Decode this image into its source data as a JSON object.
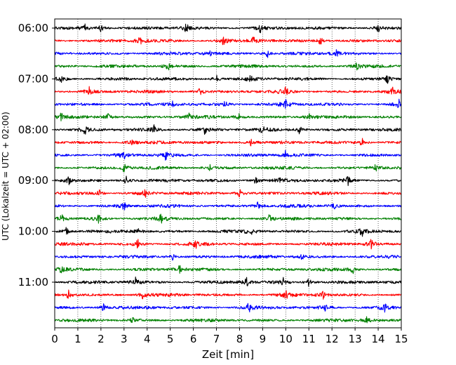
{
  "chart_data": {
    "type": "line",
    "title": "",
    "xlabel": "Zeit  [min]",
    "ylabel": "UTC (Lokalzeit = UTC + 02:00)",
    "xlim": [
      0,
      15
    ],
    "x_ticks": [
      "0",
      "1",
      "2",
      "3",
      "4",
      "5",
      "6",
      "7",
      "8",
      "9",
      "10",
      "11",
      "12",
      "13",
      "14",
      "15"
    ],
    "y_ticks": [
      {
        "label": "06:00",
        "trace": 0
      },
      {
        "label": "07:00",
        "trace": 4
      },
      {
        "label": "08:00",
        "trace": 8
      },
      {
        "label": "09:00",
        "trace": 12
      },
      {
        "label": "10:00",
        "trace": 16
      },
      {
        "label": "11:00",
        "trace": 20
      }
    ],
    "grid": "vertical-dotted",
    "trace_interval_min": 15,
    "trace_colors": [
      "#000000",
      "#ff0000",
      "#0000ff",
      "#008000"
    ],
    "traces": [
      {
        "start": "06:00",
        "events": [
          1.3,
          2.0,
          5.7,
          8.9,
          14.0
        ]
      },
      {
        "start": "06:15",
        "events": [
          3.7,
          7.3,
          8.6,
          11.5
        ]
      },
      {
        "start": "06:30",
        "events": [
          6.7,
          9.2,
          12.2
        ]
      },
      {
        "start": "06:45",
        "events": [
          4.9,
          13.1
        ]
      },
      {
        "start": "07:00",
        "events": [
          0.3,
          7.0,
          8.5,
          14.4
        ]
      },
      {
        "start": "07:15",
        "events": [
          1.5,
          6.3,
          10.0,
          14.6
        ]
      },
      {
        "start": "07:30",
        "events": [
          5.1,
          7.4,
          10.0,
          14.9
        ]
      },
      {
        "start": "07:45",
        "events": [
          0.3,
          2.3,
          5.8,
          8.0,
          11.0
        ]
      },
      {
        "start": "08:00",
        "events": [
          1.3,
          4.3,
          6.5,
          9.0,
          10.6
        ]
      },
      {
        "start": "08:15",
        "events": [
          3.3,
          8.5,
          13.3
        ]
      },
      {
        "start": "08:30",
        "events": [
          3.0,
          4.8,
          10.0
        ]
      },
      {
        "start": "08:45",
        "events": [
          3.0,
          6.7,
          13.9
        ]
      },
      {
        "start": "09:00",
        "events": [
          0.6,
          3.1,
          8.7,
          9.7,
          12.7
        ]
      },
      {
        "start": "09:15",
        "events": [
          1.9,
          3.9,
          8.0
        ]
      },
      {
        "start": "09:30",
        "events": [
          3.0,
          8.8,
          12.1
        ]
      },
      {
        "start": "09:45",
        "events": [
          0.3,
          1.9,
          4.6,
          9.3
        ]
      },
      {
        "start": "10:00",
        "events": [
          0.5,
          3.6,
          8.5,
          13.3
        ]
      },
      {
        "start": "10:15",
        "events": [
          3.6,
          6.1,
          13.7
        ]
      },
      {
        "start": "10:30",
        "events": [
          5.1,
          10.7
        ]
      },
      {
        "start": "10:45",
        "events": [
          0.3,
          5.4,
          12.9
        ]
      },
      {
        "start": "11:00",
        "events": [
          3.5,
          8.3,
          9.9,
          11.0
        ]
      },
      {
        "start": "11:15",
        "events": [
          0.6,
          3.8,
          10.0,
          11.6
        ]
      },
      {
        "start": "11:30",
        "events": [
          2.1,
          8.4,
          11.7,
          14.3
        ]
      },
      {
        "start": "11:45",
        "events": [
          3.4,
          13.5
        ]
      }
    ]
  }
}
